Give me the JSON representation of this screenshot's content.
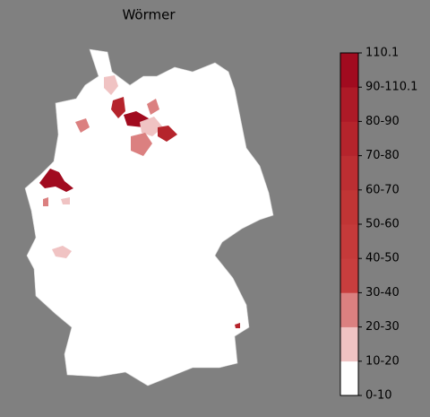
{
  "title": "Wörmer",
  "colorbar": {
    "labels": [
      "0-10",
      "10-20",
      "20-30",
      "30-40",
      "40-50",
      "50-60",
      "60-70",
      "70-80",
      "80-90",
      "90-110.1",
      "110.1"
    ],
    "colors": [
      "#ffffff",
      "#f0c3c3",
      "#db8080",
      "#c83e3e",
      "#c53a3a",
      "#c13535",
      "#bc2e32",
      "#b5242c",
      "#ad1a27",
      "#a10b1f"
    ]
  }
}
